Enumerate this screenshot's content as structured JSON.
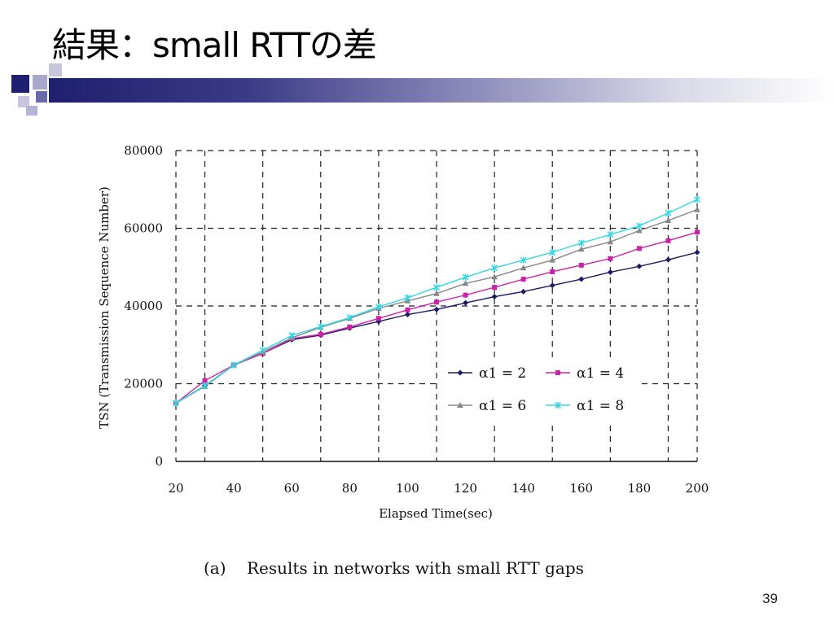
{
  "slide": {
    "title": "結果：small RTTの差",
    "caption": "(a)    Results in networks with small RTT gaps",
    "page_number": "39"
  },
  "colors": {
    "title_bar_dark": "#1f1f6f",
    "accent_square_dark": "#1f1f6f",
    "accent_square_light": "#a8a8cc"
  },
  "chart_data": {
    "type": "line",
    "xlabel": "Elapsed Time(sec)",
    "ylabel": "TSN (Transmission Sequence Number)",
    "xlim": [
      20,
      200
    ],
    "ylim": [
      0,
      80000
    ],
    "x_ticks": [
      20,
      40,
      60,
      80,
      100,
      120,
      140,
      160,
      180,
      200
    ],
    "y_ticks": [
      0,
      20000,
      40000,
      60000,
      80000
    ],
    "grid": true,
    "legend_position": "lower-right",
    "x": [
      20,
      30,
      40,
      50,
      60,
      70,
      80,
      90,
      100,
      110,
      120,
      130,
      140,
      150,
      160,
      170,
      180,
      190,
      200
    ],
    "series": [
      {
        "name": "α1 = 2",
        "color": "#1a1a66",
        "marker": "diamond",
        "values": [
          15000,
          19500,
          24800,
          27800,
          31300,
          32500,
          34300,
          36000,
          37800,
          39100,
          40800,
          42400,
          43700,
          45300,
          46900,
          48700,
          50200,
          51900,
          53800
        ]
      },
      {
        "name": "α1 = 4",
        "color": "#cc22aa",
        "marker": "square",
        "values": [
          15000,
          20800,
          24800,
          27800,
          31600,
          32700,
          34600,
          36800,
          39000,
          41000,
          42800,
          44800,
          46900,
          48800,
          50500,
          52200,
          54800,
          56800,
          59000
        ]
      },
      {
        "name": "α1 = 6",
        "color": "#888888",
        "marker": "triangle",
        "values": [
          15000,
          19300,
          24800,
          28200,
          31800,
          34500,
          36800,
          39400,
          41300,
          43200,
          45800,
          47500,
          49800,
          51800,
          54600,
          56500,
          59400,
          62000,
          64800
        ]
      },
      {
        "name": "α1 = 8",
        "color": "#33d6e6",
        "marker": "star",
        "values": [
          15000,
          19500,
          24800,
          28600,
          32400,
          34700,
          37000,
          39800,
          42100,
          44800,
          47400,
          49800,
          51800,
          53800,
          56200,
          58400,
          60600,
          63900,
          67400
        ]
      }
    ]
  }
}
